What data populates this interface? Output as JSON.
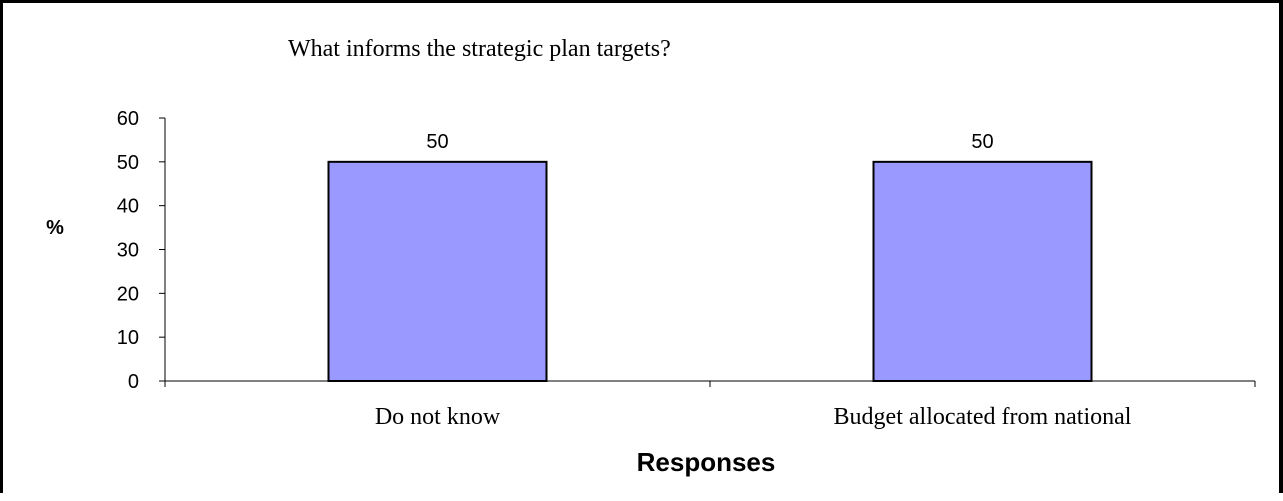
{
  "chart_data": {
    "type": "bar",
    "title": "What informs the strategic plan targets?",
    "xlabel": "Responses",
    "ylabel": "%",
    "categories": [
      "Do not know",
      "Budget allocated from national"
    ],
    "values": [
      50,
      50
    ],
    "data_labels": [
      "50",
      "50"
    ],
    "ylim": [
      0,
      60
    ],
    "yticks": [
      0,
      10,
      20,
      30,
      40,
      50,
      60
    ],
    "grid": false,
    "legend": "none",
    "colors": {
      "bar_fill": "#9999ff",
      "bar_stroke": "#000000",
      "axis": "#000000",
      "text": "#000000",
      "frame": "#000000"
    }
  }
}
